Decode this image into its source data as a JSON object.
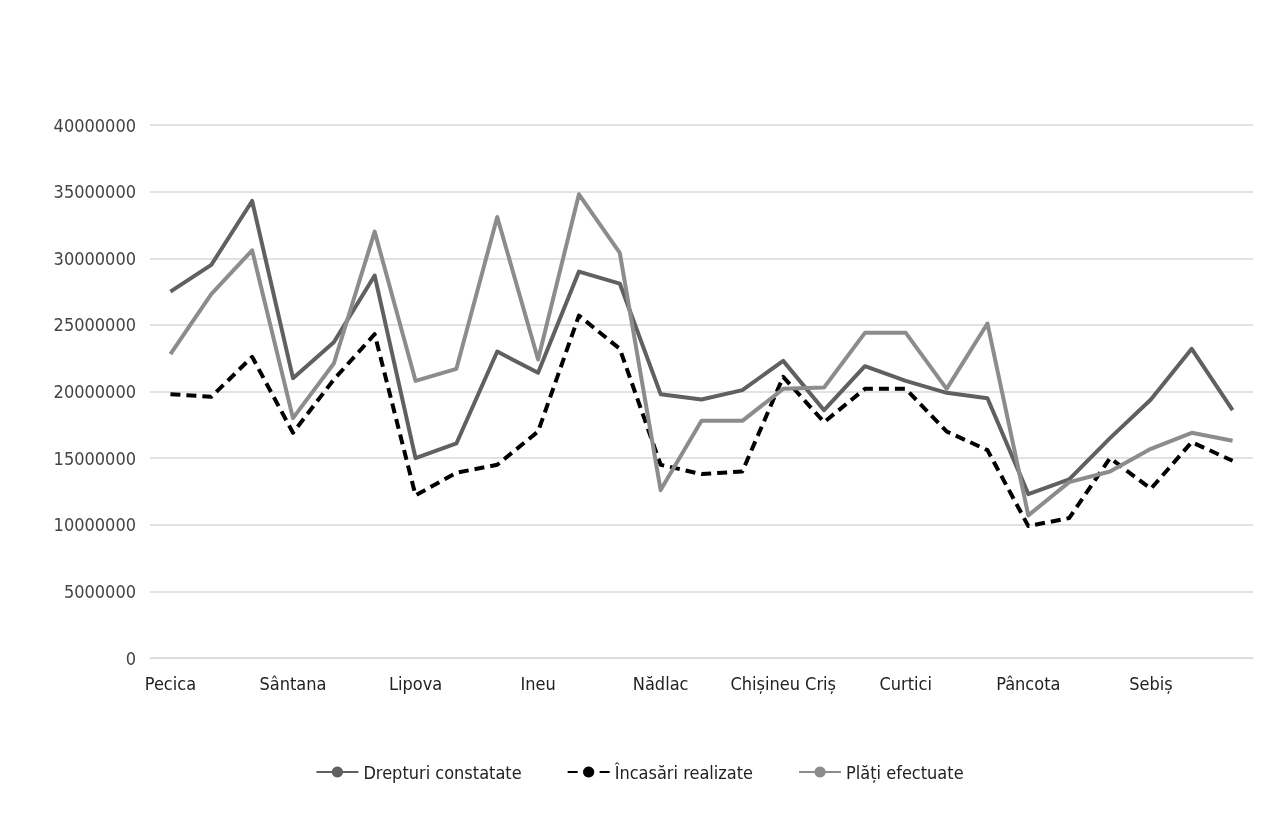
{
  "chart_data": {
    "type": "line",
    "categories": [
      "Pecica",
      null,
      null,
      "Sântana",
      null,
      null,
      "Lipova",
      null,
      null,
      "Ineu",
      null,
      null,
      "Nădlac",
      null,
      null,
      "Chișineu Criș",
      null,
      null,
      "Curtici",
      null,
      null,
      "Pâncota",
      null,
      null,
      "Sebiș",
      null,
      null
    ],
    "series": [
      {
        "name": "Drepturi constatate",
        "color": "#606060",
        "line_style": "solid",
        "values": [
          27500000,
          29500000,
          34300000,
          21000000,
          23700000,
          28700000,
          15000000,
          16100000,
          23000000,
          21400000,
          29000000,
          28100000,
          19800000,
          19400000,
          20100000,
          22300000,
          18600000,
          21900000,
          20800000,
          19900000,
          19500000,
          12300000,
          13400000,
          16500000,
          19400000,
          23200000,
          18600000
        ]
      },
      {
        "name": "Încasări realizate",
        "color": "#000000",
        "line_style": "dashed",
        "values": [
          19800000,
          19600000,
          22600000,
          16900000,
          20900000,
          24300000,
          12200000,
          13900000,
          14500000,
          17000000,
          25700000,
          23200000,
          14500000,
          13800000,
          14000000,
          21100000,
          17700000,
          20200000,
          20200000,
          17000000,
          15600000,
          9900000,
          10500000,
          15000000,
          12700000,
          16200000,
          14800000
        ]
      },
      {
        "name": "Plăți efectuate",
        "color": "#8c8c8c",
        "line_style": "solid",
        "values": [
          22800000,
          27300000,
          30600000,
          18000000,
          22100000,
          32000000,
          20800000,
          21700000,
          33100000,
          22400000,
          34800000,
          30400000,
          12600000,
          17800000,
          17800000,
          20200000,
          20300000,
          24400000,
          24400000,
          20200000,
          25100000,
          10700000,
          13200000,
          14000000,
          15700000,
          16900000,
          16300000
        ]
      }
    ],
    "ylim": [
      0,
      40000000
    ],
    "yticks": [
      0,
      5000000,
      10000000,
      15000000,
      20000000,
      25000000,
      30000000,
      35000000,
      40000000
    ],
    "grid": "y",
    "legend": "bottom",
    "marker": "none"
  }
}
